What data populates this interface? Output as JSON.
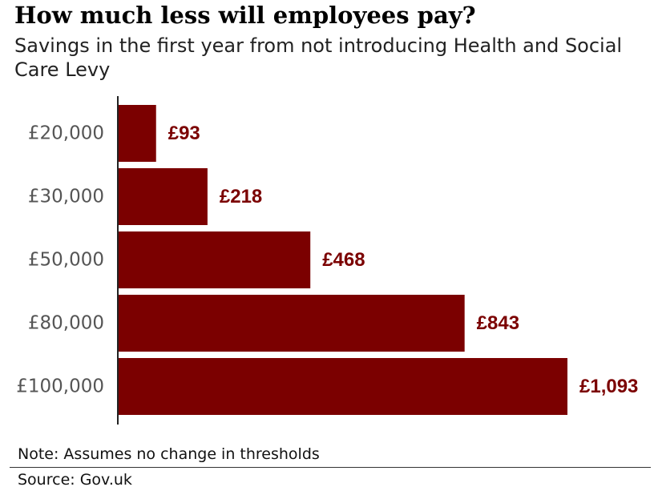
{
  "title": "How much less will employees pay?",
  "subtitle": "Savings in the first year from not introducing Health and Social Care Levy",
  "note": "Note: Assumes no change in thresholds",
  "source": "Source: Gov.uk",
  "colors": {
    "bar": "#7b0000",
    "value_label": "#7b0000",
    "axis": "#222222"
  },
  "chart_data": {
    "type": "bar",
    "orientation": "horizontal",
    "title": "How much less will employees pay?",
    "subtitle": "Savings in the first year from not introducing Health and Social Care Levy",
    "categories": [
      "£20,000",
      "£30,000",
      "£50,000",
      "£80,000",
      "£100,000"
    ],
    "values": [
      93,
      218,
      468,
      843,
      1093
    ],
    "value_labels": [
      "£93",
      "£218",
      "£468",
      "£843",
      "£1,093"
    ],
    "xlim": [
      0,
      1093
    ],
    "grid": false,
    "legend": "none"
  }
}
